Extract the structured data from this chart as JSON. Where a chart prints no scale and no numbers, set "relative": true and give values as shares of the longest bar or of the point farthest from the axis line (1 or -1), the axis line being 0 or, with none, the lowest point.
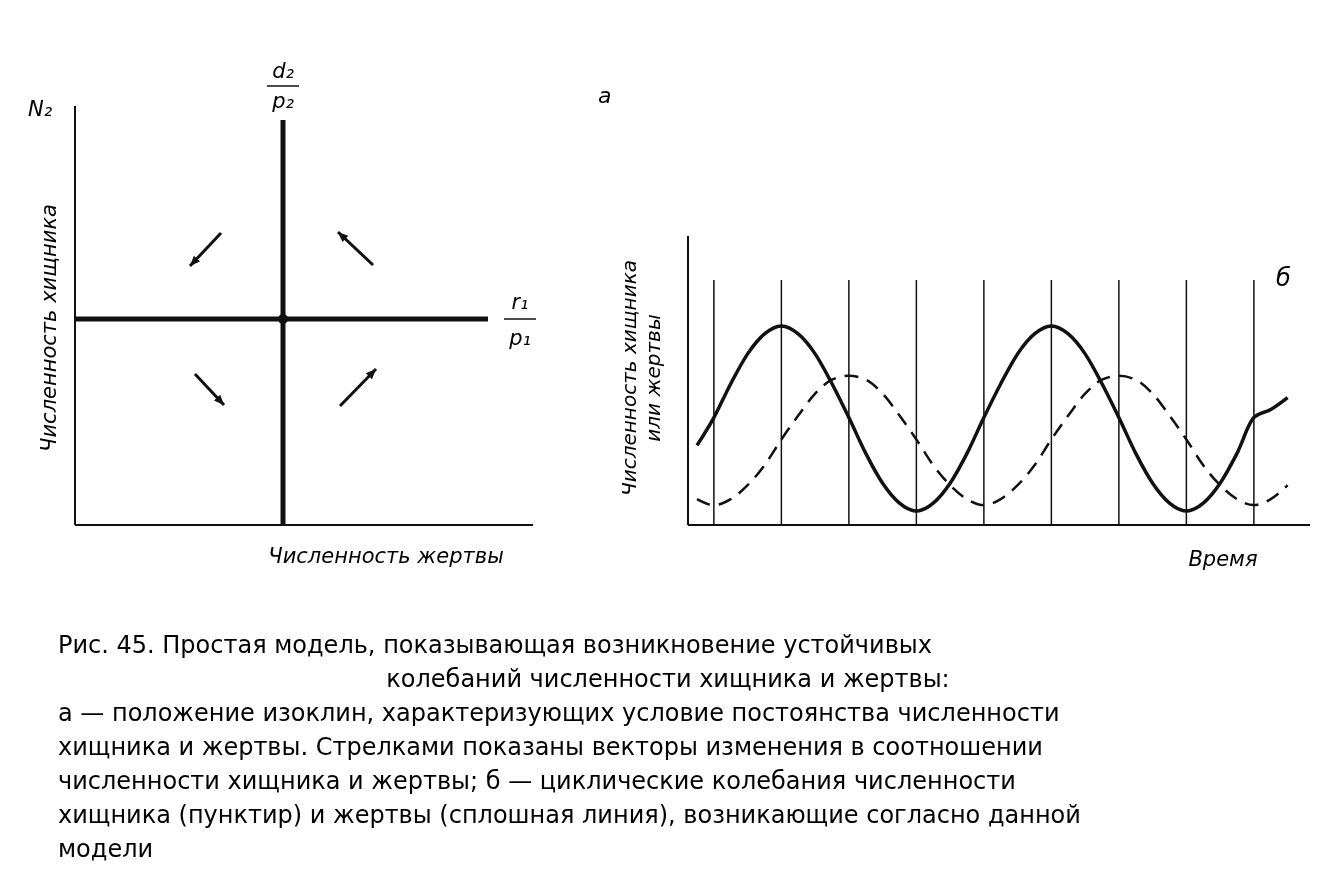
{
  "chart_data": [
    {
      "type": "other",
      "title": "а",
      "xlabel": "Численность жертвы",
      "ylabel": "Численность хищника",
      "annotations": [
        "N₂",
        "d₂",
        "p₂",
        "r₁",
        "p₁"
      ]
    },
    {
      "type": "line",
      "title": "б",
      "xlabel": "Время",
      "ylabel": "Численность хищника или жертвы",
      "relative": true,
      "categories": [
        null,
        null,
        null,
        null,
        null,
        null,
        null,
        null,
        null,
        null,
        null,
        null,
        null,
        null,
        null,
        null,
        null,
        null,
        null,
        null,
        null,
        null,
        null,
        null,
        null,
        null,
        null,
        null,
        null,
        null,
        null,
        null,
        null,
        null,
        null,
        null
      ],
      "grid": "x",
      "series": [
        {
          "color": "#111111",
          "line_style": "solid",
          "values": [
            0.4,
            0.54,
            0.71,
            0.86,
            0.96,
            1.0,
            0.96,
            0.86,
            0.71,
            0.54,
            0.36,
            0.21,
            0.11,
            0.07,
            0.11,
            0.21,
            0.36,
            0.54,
            0.71,
            0.86,
            0.96,
            1.0,
            0.96,
            0.86,
            0.71,
            0.54,
            0.36,
            0.21,
            0.11,
            0.07,
            0.11,
            0.21,
            0.36,
            0.54,
            0.58,
            0.64
          ]
        },
        {
          "color": "#111111",
          "line_style": "dashed",
          "values": [
            0.13,
            0.1,
            0.13,
            0.2,
            0.3,
            0.43,
            0.55,
            0.66,
            0.73,
            0.75,
            0.73,
            0.66,
            0.55,
            0.43,
            0.3,
            0.2,
            0.13,
            0.1,
            0.13,
            0.2,
            0.3,
            0.43,
            0.55,
            0.66,
            0.73,
            0.75,
            0.73,
            0.66,
            0.55,
            0.43,
            0.3,
            0.2,
            0.13,
            0.1,
            0.13,
            0.2
          ]
        }
      ],
      "annotations": [
        "Рис. 45. Простая модель, показывающая возникновение устойчивых колебаний численности хищника и жертвы:",
        "а — положение изоклин, характеризующих условие постоянства численности хищника и жертвы. Стрелками показаны векторы изменения в соотношении численности хищника и жертвы; б — циклические колебания численности хищника (пунктир) и жертвы (сплошная линия), возникающие согласно данной модели"
      ]
    }
  ]
}
